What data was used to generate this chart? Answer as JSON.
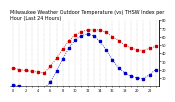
{
  "title": "Milwaukee Weather Outdoor Temperature (vs) THSW Index per Hour (Last 24 Hours)",
  "hours": [
    0,
    1,
    2,
    3,
    4,
    5,
    6,
    7,
    8,
    9,
    10,
    11,
    12,
    13,
    14,
    15,
    16,
    17,
    18,
    19,
    20,
    21,
    22,
    23
  ],
  "temp": [
    22,
    20,
    19,
    18,
    17,
    16,
    24,
    34,
    45,
    55,
    62,
    66,
    68,
    68,
    68,
    65,
    60,
    55,
    50,
    46,
    44,
    43,
    46,
    48
  ],
  "thsw": [
    2,
    0,
    -2,
    -3,
    -4,
    -3,
    5,
    18,
    33,
    46,
    56,
    61,
    63,
    61,
    54,
    44,
    32,
    22,
    16,
    12,
    10,
    9,
    14,
    20
  ],
  "temp_color": "#cc0000",
  "thsw_color": "#0000cc",
  "ylim": [
    0,
    80
  ],
  "yticks_right": [
    10,
    20,
    30,
    40,
    50,
    60,
    70,
    80
  ],
  "bg_color": "#ffffff",
  "grid_color": "#bbbbbb",
  "title_fontsize": 3.5,
  "markersize": 1.8,
  "linewidth": 0.0,
  "linestyle": "None"
}
